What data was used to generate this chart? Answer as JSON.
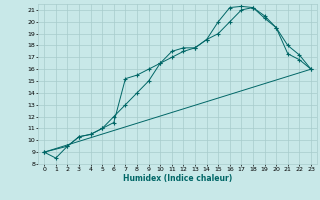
{
  "xlabel": "Humidex (Indice chaleur)",
  "background_color": "#c8e8e8",
  "grid_color": "#a8cccc",
  "line_color": "#006666",
  "xlim": [
    -0.5,
    23.5
  ],
  "ylim": [
    8,
    21.5
  ],
  "xticks": [
    0,
    1,
    2,
    3,
    4,
    5,
    6,
    7,
    8,
    9,
    10,
    11,
    12,
    13,
    14,
    15,
    16,
    17,
    18,
    19,
    20,
    21,
    22,
    23
  ],
  "yticks": [
    8,
    9,
    10,
    11,
    12,
    13,
    14,
    15,
    16,
    17,
    18,
    19,
    20,
    21
  ],
  "line1_x": [
    0,
    1,
    2,
    3,
    4,
    5,
    6,
    7,
    8,
    9,
    10,
    11,
    12,
    13,
    14,
    15,
    16,
    17,
    18,
    19,
    20,
    21,
    22,
    23
  ],
  "line1_y": [
    9.0,
    8.5,
    9.5,
    10.3,
    10.5,
    11.0,
    12.0,
    13.0,
    14.0,
    15.0,
    16.5,
    17.0,
    17.5,
    17.8,
    18.5,
    20.0,
    21.2,
    21.3,
    21.2,
    20.3,
    19.5,
    18.0,
    17.2,
    16.0
  ],
  "line2_x": [
    0,
    2,
    3,
    4,
    5,
    6,
    7,
    8,
    9,
    10,
    11,
    12,
    13,
    14,
    15,
    16,
    17,
    18,
    19,
    20,
    21,
    22,
    23
  ],
  "line2_y": [
    9.0,
    9.5,
    10.3,
    10.5,
    11.0,
    11.5,
    15.2,
    15.5,
    16.0,
    16.5,
    17.5,
    17.8,
    17.8,
    18.5,
    19.0,
    20.0,
    21.0,
    21.2,
    20.5,
    19.5,
    17.3,
    16.8,
    16.0
  ],
  "line3_x": [
    0,
    23
  ],
  "line3_y": [
    9.0,
    16.0
  ]
}
